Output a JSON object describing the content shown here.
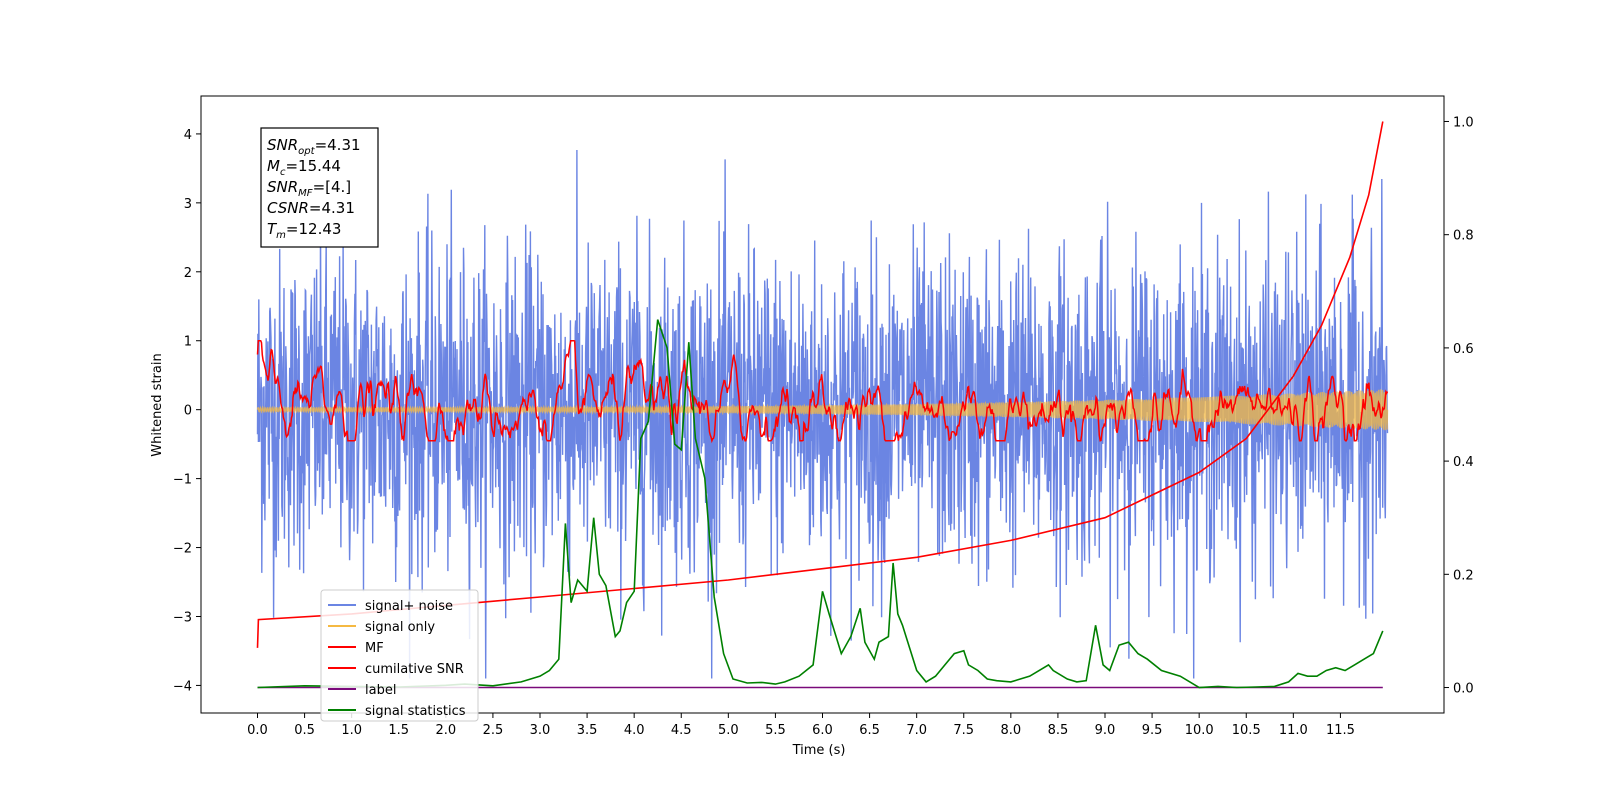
{
  "chart_data": {
    "type": "line",
    "xlabel": "Time (s)",
    "ylabel": "Whitened strain",
    "xlim": [
      -0.6,
      12.6
    ],
    "ylim": [
      -4.4,
      4.55
    ],
    "y2lim": [
      -0.045,
      1.045
    ],
    "x_ticks": [
      "0.0",
      "0.5",
      "1.0",
      "1.5",
      "2.0",
      "2.5",
      "3.0",
      "3.5",
      "4.0",
      "4.5",
      "5.0",
      "5.5",
      "6.0",
      "6.5",
      "7.0",
      "7.5",
      "8.0",
      "8.5",
      "9.0",
      "9.5",
      "10.0",
      "10.5",
      "11.0",
      "11.5"
    ],
    "y_ticks": [
      "4",
      "3",
      "2",
      "1",
      "0",
      "−1",
      "−2",
      "−3",
      "−4"
    ],
    "y2_ticks": [
      "1.0",
      "0.8",
      "0.6",
      "0.4",
      "0.2",
      "0.0"
    ],
    "grid": false,
    "legend_position": "lower-left",
    "colors": {
      "signal_noise": "#6b85e3",
      "signal_only": "#f5b942",
      "mf": "#ff0000",
      "cumulative_snr": "#ff0000",
      "label": "#7a0a7a",
      "signal_statistics": "#008000"
    },
    "series": [
      {
        "name": "signal+ noise",
        "axis": "left",
        "description_values": "dense noise approx between -3.9 and 4.2 for t in [0, 12]"
      },
      {
        "name": "signal only",
        "axis": "left",
        "peak_amplitude": 0.3
      },
      {
        "name": "MF",
        "axis": "left",
        "range": [
          -0.45,
          1.0
        ],
        "start_value": 0.8
      },
      {
        "name": "cumilative SNR",
        "axis": "right",
        "x": [
          0.0,
          0.01,
          1.0,
          2.0,
          3.0,
          4.0,
          5.0,
          6.0,
          7.0,
          8.0,
          9.0,
          10.0,
          10.5,
          11.0,
          11.3,
          11.6,
          11.8,
          11.95
        ],
        "values": [
          0.07,
          0.12,
          0.13,
          0.145,
          0.16,
          0.175,
          0.19,
          0.21,
          0.23,
          0.26,
          0.3,
          0.38,
          0.44,
          0.55,
          0.64,
          0.76,
          0.87,
          1.0
        ]
      },
      {
        "name": "label",
        "axis": "right",
        "x": [
          0.0,
          11.95
        ],
        "values": [
          0.0,
          0.0
        ]
      },
      {
        "name": "signal statistics",
        "axis": "right",
        "x": [
          0.0,
          0.5,
          1.0,
          1.5,
          2.0,
          2.2,
          2.5,
          2.8,
          3.0,
          3.1,
          3.2,
          3.27,
          3.33,
          3.4,
          3.5,
          3.57,
          3.63,
          3.7,
          3.8,
          3.85,
          3.92,
          4.0,
          4.07,
          4.15,
          4.25,
          4.35,
          4.43,
          4.5,
          4.58,
          4.65,
          4.75,
          4.85,
          4.95,
          5.05,
          5.2,
          5.35,
          5.5,
          5.6,
          5.75,
          5.9,
          6.0,
          6.07,
          6.2,
          6.3,
          6.4,
          6.45,
          6.55,
          6.6,
          6.7,
          6.75,
          6.8,
          6.85,
          7.0,
          7.1,
          7.2,
          7.3,
          7.4,
          7.5,
          7.55,
          7.65,
          7.75,
          7.85,
          8.0,
          8.2,
          8.4,
          8.45,
          8.6,
          8.7,
          8.8,
          8.9,
          8.98,
          9.05,
          9.15,
          9.25,
          9.35,
          9.45,
          9.6,
          9.8,
          10.0,
          10.2,
          10.4,
          10.6,
          10.8,
          10.95,
          11.05,
          11.15,
          11.25,
          11.35,
          11.45,
          11.55,
          11.65,
          11.75,
          11.85,
          11.95
        ],
        "values": [
          0.0,
          0.003,
          0.002,
          0.001,
          0.004,
          0.006,
          0.003,
          0.01,
          0.02,
          0.03,
          0.05,
          0.29,
          0.15,
          0.19,
          0.17,
          0.3,
          0.2,
          0.18,
          0.09,
          0.1,
          0.15,
          0.17,
          0.44,
          0.47,
          0.65,
          0.6,
          0.43,
          0.42,
          0.61,
          0.44,
          0.37,
          0.16,
          0.06,
          0.015,
          0.008,
          0.009,
          0.006,
          0.01,
          0.02,
          0.04,
          0.17,
          0.13,
          0.06,
          0.09,
          0.14,
          0.08,
          0.05,
          0.08,
          0.09,
          0.22,
          0.13,
          0.11,
          0.03,
          0.01,
          0.02,
          0.04,
          0.06,
          0.065,
          0.04,
          0.03,
          0.015,
          0.012,
          0.01,
          0.02,
          0.04,
          0.03,
          0.015,
          0.01,
          0.012,
          0.11,
          0.04,
          0.03,
          0.075,
          0.08,
          0.06,
          0.05,
          0.03,
          0.02,
          0.0,
          0.002,
          0.0,
          0.001,
          0.002,
          0.01,
          0.025,
          0.02,
          0.02,
          0.03,
          0.035,
          0.03,
          0.04,
          0.05,
          0.06,
          0.1
        ]
      }
    ],
    "stats_box": [
      {
        "base": "SNR",
        "sub": "opt",
        "value": "=4.31"
      },
      {
        "base": "M",
        "sub": "c",
        "value": "=15.44"
      },
      {
        "base": "SNR",
        "sub": "MF",
        "value": "=[4.]"
      },
      {
        "base": "CSNR",
        "sub": "",
        "value": "=4.31"
      },
      {
        "base": "T",
        "sub": "m",
        "value": "=12.43"
      }
    ]
  }
}
